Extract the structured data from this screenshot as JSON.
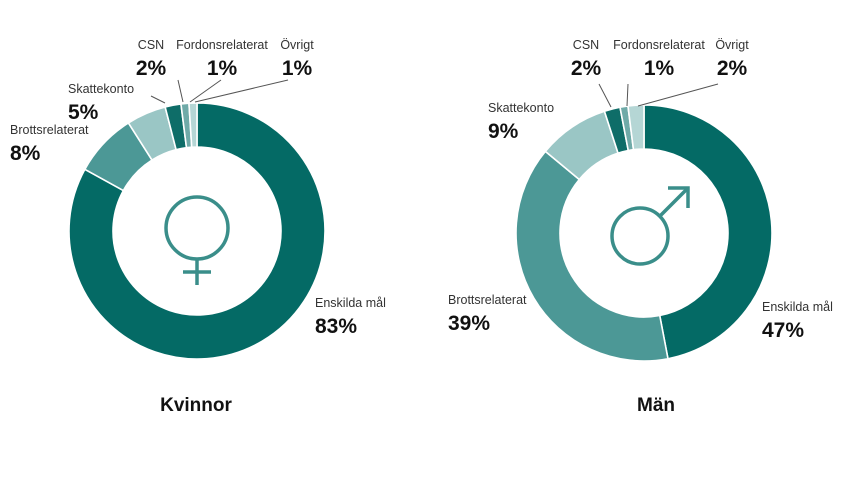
{
  "colors": {
    "enskilda": "#046a65",
    "brotts": "#4c9896",
    "skatt": "#9ac6c5",
    "csn": "#0e6d68",
    "fordon": "#6faaa8",
    "ovrigt": "#b5d6d5",
    "symbol": "#3a8e8a",
    "leader": "#555555"
  },
  "chart_data": [
    {
      "type": "pie",
      "donut": true,
      "title": "Kvinnor",
      "symbol_icon": "female-symbol-icon",
      "categories": [
        "Enskilda mål",
        "Brottsrelaterat",
        "Skattekonto",
        "CSN",
        "Fordonsrelaterat",
        "Övrigt"
      ],
      "values": [
        83,
        8,
        5,
        2,
        1,
        1
      ],
      "labels": [
        "83%",
        "8%",
        "5%",
        "2%",
        "1%",
        "1%"
      ]
    },
    {
      "type": "pie",
      "donut": true,
      "title": "Män",
      "symbol_icon": "male-symbol-icon",
      "categories": [
        "Enskilda mål",
        "Brottsrelaterat",
        "Skattekonto",
        "CSN",
        "Fordonsrelaterat",
        "Övrigt"
      ],
      "values": [
        47,
        39,
        9,
        2,
        1,
        2
      ],
      "labels": [
        "47%",
        "39%",
        "9%",
        "2%",
        "1%",
        "2%"
      ]
    }
  ]
}
